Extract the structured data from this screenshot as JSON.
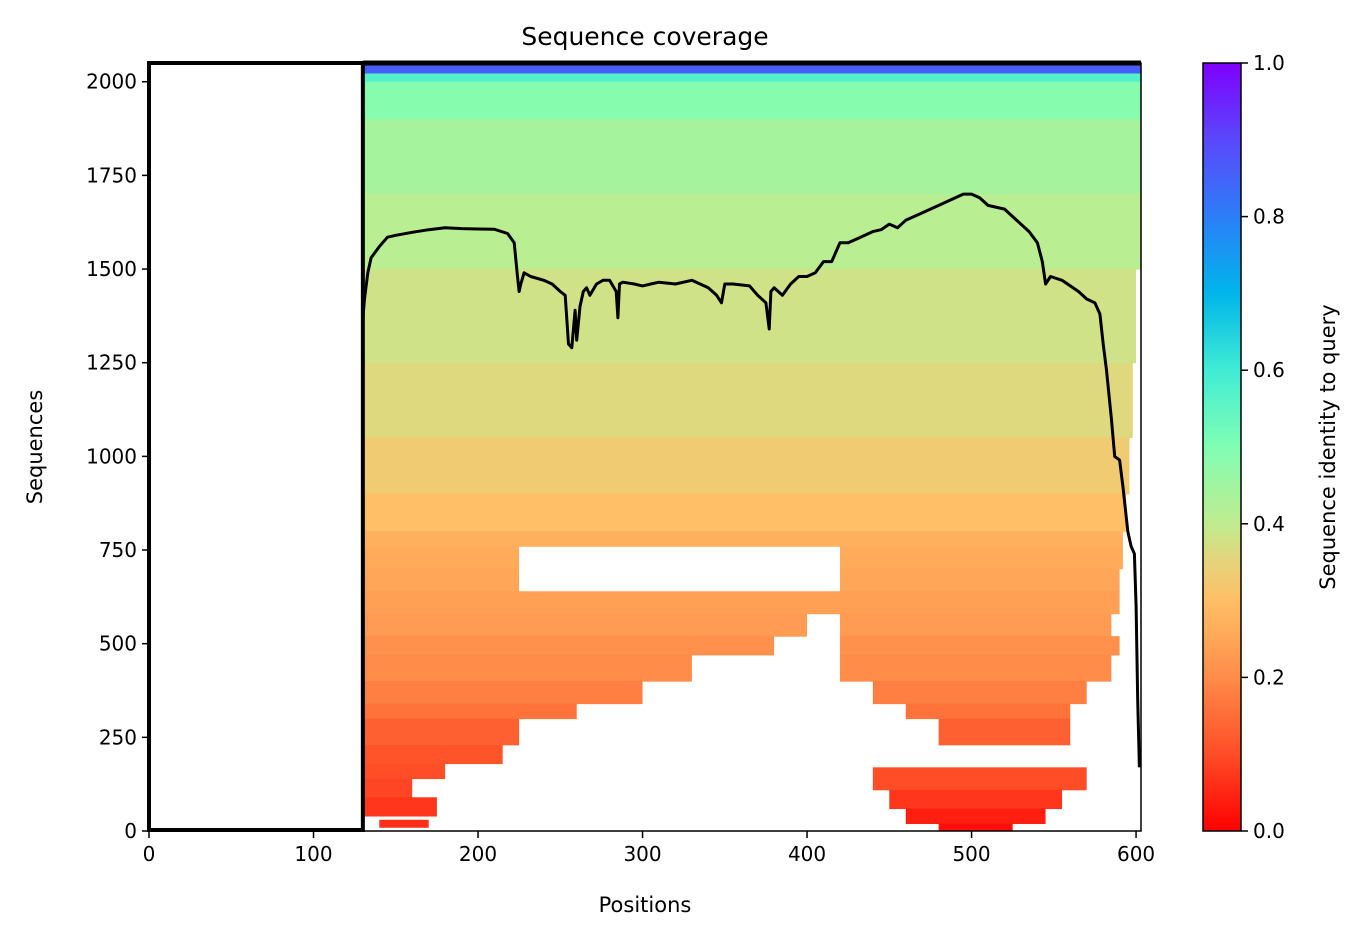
{
  "chart_data": {
    "type": "heatmap",
    "title": "Sequence coverage",
    "xlabel": "Positions",
    "ylabel": "Sequences",
    "xlim": [
      0,
      603
    ],
    "ylim": [
      0,
      2050
    ],
    "xticks": [
      0,
      100,
      200,
      300,
      400,
      500,
      600
    ],
    "yticks": [
      0,
      250,
      500,
      750,
      1000,
      1250,
      1500,
      1750,
      2000
    ],
    "gap_region": [
      0,
      130
    ],
    "colorbar": {
      "label": "Sequence identity to query",
      "range": [
        0,
        1
      ],
      "ticks": [
        0.0,
        0.2,
        0.4,
        0.6,
        0.8,
        1.0
      ],
      "tick_labels": [
        "0.0",
        "0.2",
        "0.4",
        "0.6",
        "0.8",
        "1.0"
      ],
      "colormap": "rainbow_r"
    },
    "coverage_line": {
      "color": "#000000",
      "x": [
        130,
        131,
        133,
        135,
        140,
        145,
        150,
        160,
        170,
        180,
        190,
        200,
        210,
        218,
        222,
        224,
        225,
        226,
        228,
        232,
        240,
        245,
        250,
        253,
        255,
        257,
        259,
        260,
        262,
        264,
        266,
        268,
        272,
        276,
        280,
        284,
        285,
        286,
        288,
        295,
        300,
        305,
        310,
        320,
        330,
        340,
        345,
        348,
        350,
        355,
        365,
        370,
        375,
        377,
        378,
        380,
        385,
        390,
        395,
        400,
        405,
        410,
        415,
        420,
        425,
        430,
        440,
        445,
        450,
        455,
        460,
        470,
        480,
        490,
        495,
        500,
        505,
        510,
        520,
        525,
        530,
        535,
        540,
        543,
        545,
        548,
        555,
        565,
        570,
        575,
        578,
        580,
        582,
        585,
        587,
        590,
        592,
        595,
        597,
        599,
        600,
        601,
        602
      ],
      "y": [
        1370,
        1420,
        1490,
        1530,
        1560,
        1585,
        1590,
        1598,
        1605,
        1610,
        1608,
        1607,
        1606,
        1595,
        1570,
        1480,
        1440,
        1460,
        1490,
        1480,
        1470,
        1460,
        1440,
        1430,
        1300,
        1290,
        1390,
        1310,
        1400,
        1440,
        1450,
        1430,
        1460,
        1470,
        1470,
        1440,
        1370,
        1460,
        1465,
        1460,
        1455,
        1460,
        1465,
        1460,
        1470,
        1450,
        1430,
        1410,
        1460,
        1460,
        1455,
        1430,
        1410,
        1340,
        1440,
        1450,
        1430,
        1460,
        1480,
        1480,
        1490,
        1520,
        1520,
        1570,
        1570,
        1580,
        1600,
        1605,
        1620,
        1610,
        1630,
        1650,
        1670,
        1690,
        1700,
        1700,
        1690,
        1670,
        1660,
        1640,
        1620,
        1600,
        1570,
        1520,
        1460,
        1480,
        1470,
        1440,
        1420,
        1410,
        1380,
        1300,
        1230,
        1100,
        1000,
        990,
        920,
        800,
        760,
        740,
        600,
        350,
        170
      ]
    },
    "coverage_rows": [
      {
        "y0": 2022,
        "y1": 2050,
        "x0": 130,
        "x1": 603,
        "identity": 0.86
      },
      {
        "y0": 2000,
        "y1": 2022,
        "x0": 130,
        "x1": 603,
        "identity": 0.57
      },
      {
        "y0": 1900,
        "y1": 2000,
        "x0": 130,
        "x1": 603,
        "identity": 0.49
      },
      {
        "y0": 1700,
        "y1": 1900,
        "x0": 130,
        "x1": 603,
        "identity": 0.44
      },
      {
        "y0": 1500,
        "y1": 1700,
        "x0": 130,
        "x1": 603,
        "identity": 0.41
      },
      {
        "y0": 1250,
        "y1": 1500,
        "x0": 130,
        "x1": 600,
        "identity": 0.38
      },
      {
        "y0": 1050,
        "y1": 1250,
        "x0": 130,
        "x1": 598,
        "identity": 0.36
      },
      {
        "y0": 900,
        "y1": 1050,
        "x0": 130,
        "x1": 596,
        "identity": 0.33
      },
      {
        "y0": 800,
        "y1": 900,
        "x0": 130,
        "x1": 594,
        "identity": 0.3
      },
      {
        "y0": 760,
        "y1": 800,
        "x0": 130,
        "x1": 592,
        "identity": 0.27
      },
      {
        "y0": 700,
        "y1": 760,
        "x0": 130,
        "x1": 225,
        "identity": 0.26
      },
      {
        "y0": 700,
        "y1": 760,
        "x0": 420,
        "x1": 592,
        "identity": 0.26
      },
      {
        "y0": 640,
        "y1": 700,
        "x0": 130,
        "x1": 225,
        "identity": 0.25
      },
      {
        "y0": 640,
        "y1": 700,
        "x0": 420,
        "x1": 590,
        "identity": 0.25
      },
      {
        "y0": 580,
        "y1": 640,
        "x0": 130,
        "x1": 590,
        "identity": 0.24
      },
      {
        "y0": 520,
        "y1": 580,
        "x0": 130,
        "x1": 400,
        "identity": 0.23
      },
      {
        "y0": 520,
        "y1": 580,
        "x0": 420,
        "x1": 585,
        "identity": 0.23
      },
      {
        "y0": 470,
        "y1": 520,
        "x0": 130,
        "x1": 380,
        "identity": 0.21
      },
      {
        "y0": 470,
        "y1": 520,
        "x0": 420,
        "x1": 590,
        "identity": 0.21
      },
      {
        "y0": 400,
        "y1": 470,
        "x0": 130,
        "x1": 330,
        "identity": 0.2
      },
      {
        "y0": 400,
        "y1": 470,
        "x0": 420,
        "x1": 585,
        "identity": 0.2
      },
      {
        "y0": 340,
        "y1": 400,
        "x0": 130,
        "x1": 300,
        "identity": 0.18
      },
      {
        "y0": 340,
        "y1": 400,
        "x0": 440,
        "x1": 570,
        "identity": 0.18
      },
      {
        "y0": 300,
        "y1": 340,
        "x0": 130,
        "x1": 260,
        "identity": 0.16
      },
      {
        "y0": 300,
        "y1": 340,
        "x0": 460,
        "x1": 560,
        "identity": 0.16
      },
      {
        "y0": 230,
        "y1": 300,
        "x0": 130,
        "x1": 225,
        "identity": 0.13
      },
      {
        "y0": 230,
        "y1": 300,
        "x0": 480,
        "x1": 560,
        "identity": 0.13
      },
      {
        "y0": 180,
        "y1": 230,
        "x0": 130,
        "x1": 215,
        "identity": 0.11
      },
      {
        "y0": 140,
        "y1": 180,
        "x0": 130,
        "x1": 180,
        "identity": 0.1
      },
      {
        "y0": 110,
        "y1": 170,
        "x0": 440,
        "x1": 570,
        "identity": 0.1
      },
      {
        "y0": 90,
        "y1": 140,
        "x0": 130,
        "x1": 160,
        "identity": 0.09
      },
      {
        "y0": 60,
        "y1": 110,
        "x0": 450,
        "x1": 555,
        "identity": 0.07
      },
      {
        "y0": 40,
        "y1": 90,
        "x0": 130,
        "x1": 175,
        "identity": 0.07
      },
      {
        "y0": 20,
        "y1": 60,
        "x0": 460,
        "x1": 545,
        "identity": 0.04
      },
      {
        "y0": 0,
        "y1": 20,
        "x0": 480,
        "x1": 525,
        "identity": 0.02
      },
      {
        "y0": 10,
        "y1": 30,
        "x0": 140,
        "x1": 170,
        "identity": 0.06
      }
    ],
    "grid": false,
    "legend": "none"
  }
}
